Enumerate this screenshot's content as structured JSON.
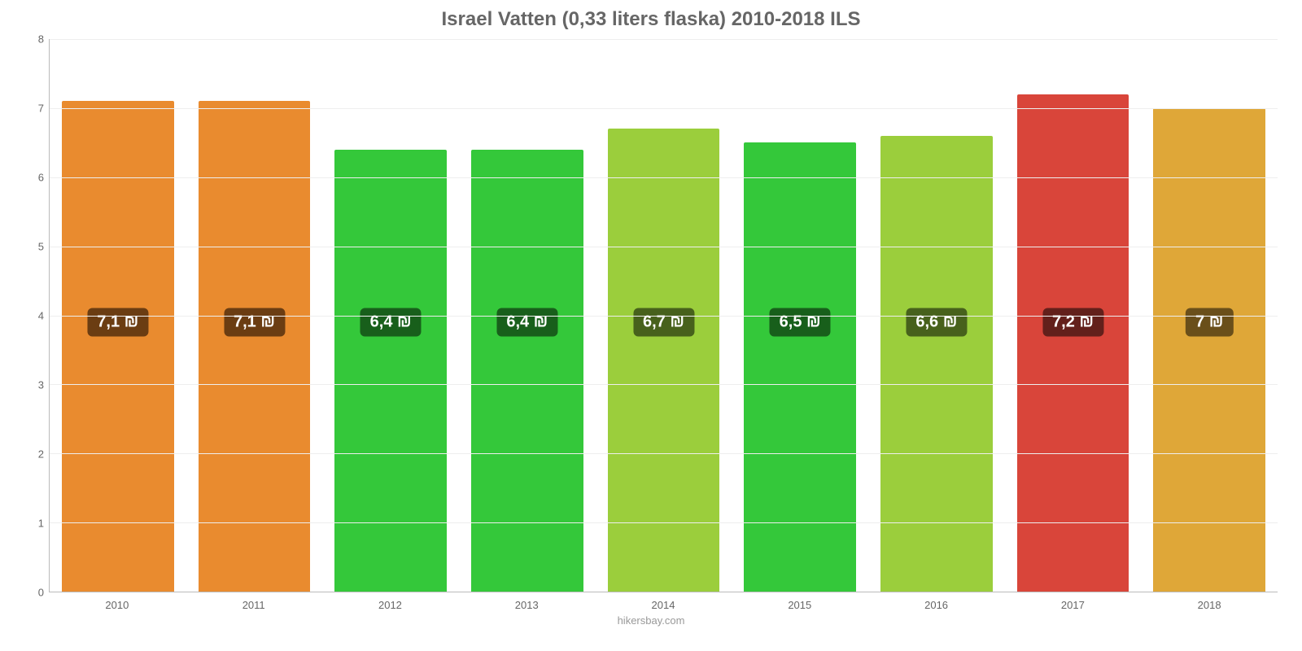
{
  "chart": {
    "type": "bar",
    "title": "Israel Vatten (0,33 liters flaska) 2010-2018 ILS",
    "title_fontsize": 24,
    "title_color": "#666666",
    "source": "hikersbay.com",
    "background_color": "#ffffff",
    "grid_color": "#eeeeee",
    "axis_color": "#bbbbbb",
    "tick_color": "#666666",
    "tick_fontsize": 13,
    "ylim": [
      0,
      8
    ],
    "yticks": [
      0,
      1,
      2,
      3,
      4,
      5,
      6,
      7,
      8
    ],
    "bar_width": 0.82,
    "categories": [
      "2010",
      "2011",
      "2012",
      "2013",
      "2014",
      "2015",
      "2016",
      "2017",
      "2018"
    ],
    "values": [
      7.1,
      7.1,
      6.4,
      6.4,
      6.7,
      6.5,
      6.6,
      7.2,
      7.0
    ],
    "value_labels": [
      "7,1 ₪",
      "7,1 ₪",
      "6,4 ₪",
      "6,4 ₪",
      "6,7 ₪",
      "6,5 ₪",
      "6,6 ₪",
      "7,2 ₪",
      "7 ₪"
    ],
    "bar_colors": [
      "#e98b2f",
      "#e98b2f",
      "#34c83a",
      "#34c83a",
      "#9bce3c",
      "#34c83a",
      "#9bce3c",
      "#d9453a",
      "#dfa738"
    ],
    "label_bg_colors": [
      "#6b3d12",
      "#6b3d12",
      "#185f1b",
      "#185f1b",
      "#47611c",
      "#185f1b",
      "#47611c",
      "#63201b",
      "#6a4f1a"
    ],
    "label_fontsize": 20,
    "label_y_value": 3.9
  }
}
